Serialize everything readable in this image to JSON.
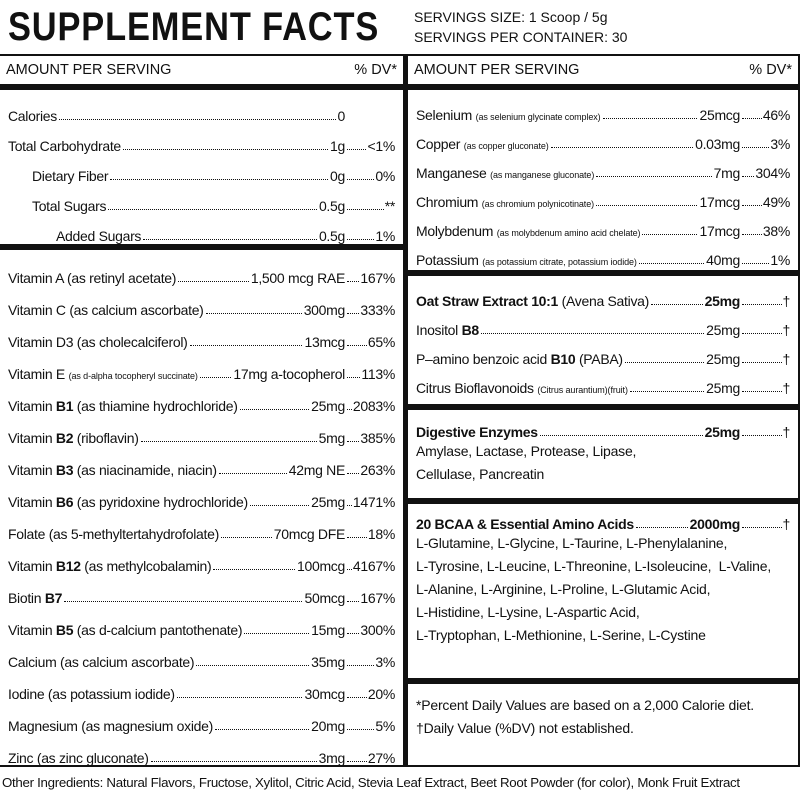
{
  "header": {
    "title": "SUPPLEMENT FACTS",
    "servings": [
      "SERVINGS SIZE: 1 Scoop / 5g",
      "SERVINGS PER CONTAINER: 30"
    ]
  },
  "left": {
    "heading": {
      "amount": "AMOUNT PER SERVING",
      "dv": "% DV*"
    },
    "sections": [
      {
        "rows": [
          {
            "label": [
              {
                "text": "Calories"
              }
            ],
            "amount": "0"
          },
          {
            "label": [
              {
                "text": "Total Carbohydrate"
              }
            ],
            "amount": "1g",
            "dv": "<1%",
            "sub": [
              {
                "label": [
                  {
                    "text": "Dietary Fiber"
                  }
                ],
                "amount": "0g",
                "dv": "0%"
              },
              {
                "label": [
                  {
                    "text": "Total Sugars"
                  }
                ],
                "amount": "0.5g",
                "dv": "**",
                "sub": [
                  {
                    "label": [
                      {
                        "text": "Added Sugars"
                      }
                    ],
                    "amount": "0.5g",
                    "dv": "1%"
                  }
                ]
              }
            ]
          }
        ]
      },
      {
        "rows": [
          {
            "label": [
              {
                "text": "Vitamin A (as retinyl acetate)"
              }
            ],
            "amount": "1,500 mcg RAE",
            "dv": "167%"
          },
          {
            "label": [
              {
                "text": "Vitamin C (as calcium ascorbate)"
              }
            ],
            "amount": "300mg",
            "dv": "333%"
          },
          {
            "label": [
              {
                "text": "Vitamin D3 (as cholecalciferol)"
              }
            ],
            "amount": "13mcg",
            "dv": "65%"
          },
          {
            "label": [
              {
                "text": "Vitamin E "
              },
              {
                "text": "(as d-alpha tocopheryl succinate)",
                "style": "small"
              }
            ],
            "amount": "17mg a-tocopherol",
            "dv": "113%"
          },
          {
            "label": [
              {
                "text": "Vitamin "
              },
              {
                "text": "B1",
                "style": "bold"
              },
              {
                "text": " (as thiamine hydrochloride)"
              }
            ],
            "amount": "25mg",
            "dv": "2083%"
          },
          {
            "label": [
              {
                "text": "Vitamin "
              },
              {
                "text": "B2",
                "style": "bold"
              },
              {
                "text": " (riboflavin)"
              }
            ],
            "amount": "5mg",
            "dv": "385%"
          },
          {
            "label": [
              {
                "text": "Vitamin "
              },
              {
                "text": "B3",
                "style": "bold"
              },
              {
                "text": " (as niacinamide, niacin)"
              }
            ],
            "amount": "42mg NE",
            "dv": "263%"
          },
          {
            "label": [
              {
                "text": "Vitamin "
              },
              {
                "text": "B6",
                "style": "bold"
              },
              {
                "text": " (as pyridoxine hydrochloride)"
              }
            ],
            "amount": "25mg",
            "dv": "1471%"
          },
          {
            "label": [
              {
                "text": "Folate (as 5-methyltertahydrofolate)"
              }
            ],
            "amount": "70mcg DFE",
            "dv": "18%"
          },
          {
            "label": [
              {
                "text": "Vitamin "
              },
              {
                "text": "B12",
                "style": "bold"
              },
              {
                "text": " (as methylcobalamin)"
              }
            ],
            "amount": "100mcg",
            "dv": "4167%"
          },
          {
            "label": [
              {
                "text": "Biotin "
              },
              {
                "text": "B7",
                "style": "bold"
              }
            ],
            "amount": "50mcg",
            "dv": "167%"
          },
          {
            "label": [
              {
                "text": "Vitamin "
              },
              {
                "text": "B5",
                "style": "bold"
              },
              {
                "text": " (as d-calcium pantothenate)"
              }
            ],
            "amount": "15mg",
            "dv": "300%"
          },
          {
            "label": [
              {
                "text": "Calcium (as calcium ascorbate)"
              }
            ],
            "amount": "35mg",
            "dv": "3%"
          },
          {
            "label": [
              {
                "text": "Iodine (as potassium iodide)"
              }
            ],
            "amount": "30mcg",
            "dv": "20%"
          },
          {
            "label": [
              {
                "text": "Magnesium (as magnesium oxide)"
              }
            ],
            "amount": "20mg",
            "dv": "5%"
          },
          {
            "label": [
              {
                "text": "Zinc (as zinc gluconate)"
              }
            ],
            "amount": "3mg",
            "dv": "27%"
          }
        ]
      }
    ]
  },
  "right": {
    "heading": {
      "amount": "AMOUNT PER SERVING",
      "dv": "% DV*"
    },
    "sections": [
      {
        "rows": [
          {
            "label": [
              {
                "text": "Selenium "
              },
              {
                "text": "(as selenium glycinate complex)",
                "style": "small"
              }
            ],
            "amount": "25mcg",
            "dv": "46%"
          },
          {
            "label": [
              {
                "text": "Copper "
              },
              {
                "text": "(as copper gluconate)",
                "style": "small"
              }
            ],
            "amount": "0.03mg",
            "dv": "3%"
          },
          {
            "label": [
              {
                "text": "Manganese "
              },
              {
                "text": "(as manganese gluconate)",
                "style": "small"
              }
            ],
            "amount": "7mg",
            "dv": "304%"
          },
          {
            "label": [
              {
                "text": "Chromium "
              },
              {
                "text": "(as chromium polynicotinate)",
                "style": "small"
              }
            ],
            "amount": "17mcg",
            "dv": "49%"
          },
          {
            "label": [
              {
                "text": "Molybdenum "
              },
              {
                "text": "(as molybdenum amino acid chelate)",
                "style": "small"
              }
            ],
            "amount": "17mcg",
            "dv": "38%"
          },
          {
            "label": [
              {
                "text": "Potassium "
              },
              {
                "text": "(as potassium citrate, potassium iodide)",
                "style": "small"
              }
            ],
            "amount": "40mg",
            "dv": "1%"
          }
        ]
      },
      {
        "rows": [
          {
            "label": [
              {
                "text": "Oat Straw Extract 10:1",
                "style": "bold"
              },
              {
                "text": " (Avena Sativa)"
              }
            ],
            "amount": "25mg",
            "dv": "†",
            "bold": true
          },
          {
            "label": [
              {
                "text": "Inositol "
              },
              {
                "text": "B8",
                "style": "bold"
              }
            ],
            "amount": "25mg",
            "dv": "†"
          },
          {
            "label": [
              {
                "text": "P–amino benzoic acid "
              },
              {
                "text": "B10",
                "style": "bold"
              },
              {
                "text": " (PABA)"
              }
            ],
            "amount": "25mg",
            "dv": "†"
          },
          {
            "label": [
              {
                "text": "Citrus Bioflavonoids "
              },
              {
                "text": "(Citrus aurantium)(fruit)",
                "style": "small"
              }
            ],
            "amount": "25mg",
            "dv": "†"
          }
        ]
      },
      {
        "rows": [
          {
            "label": [
              {
                "text": "Digestive Enzymes",
                "style": "bold"
              }
            ],
            "amount": "25mg",
            "dv": "†",
            "bold": true
          }
        ],
        "lines": [
          "Amylase, Lactase, Protease, Lipase,",
          "Cellulase, Pancreatin"
        ]
      },
      {
        "rows": [
          {
            "label": [
              {
                "text": "20 BCAA & Essential Amino Acids",
                "style": "bold"
              }
            ],
            "amount": "2000mg",
            "dv": "†",
            "bold": true
          }
        ],
        "lines": [
          "L-Glutamine, L-Glycine, L-Taurine, L-Phenylalanine,",
          "L-Tyrosine, L-Leucine, L-Threonine, L-Isoleucine,  L-Valine,",
          "L-Alanine, L-Arginine, L-Proline, L-Glutamic Acid,",
          "L-Histidine, L-Lysine, L-Aspartic Acid,",
          "L-Tryptophan, L-Methionine, L-Serine, L-Cystine"
        ]
      },
      {
        "lines": [
          "*Percent Daily Values are based on a 2,000 Calorie diet.",
          "†Daily Value (%DV) not established."
        ]
      }
    ]
  },
  "other_ingredients": "Other Ingredients: Natural Flavors, Fructose, Xylitol, Citric Acid, Stevia Leaf Extract, Beet Root Powder (for color), Monk Fruit Extract"
}
